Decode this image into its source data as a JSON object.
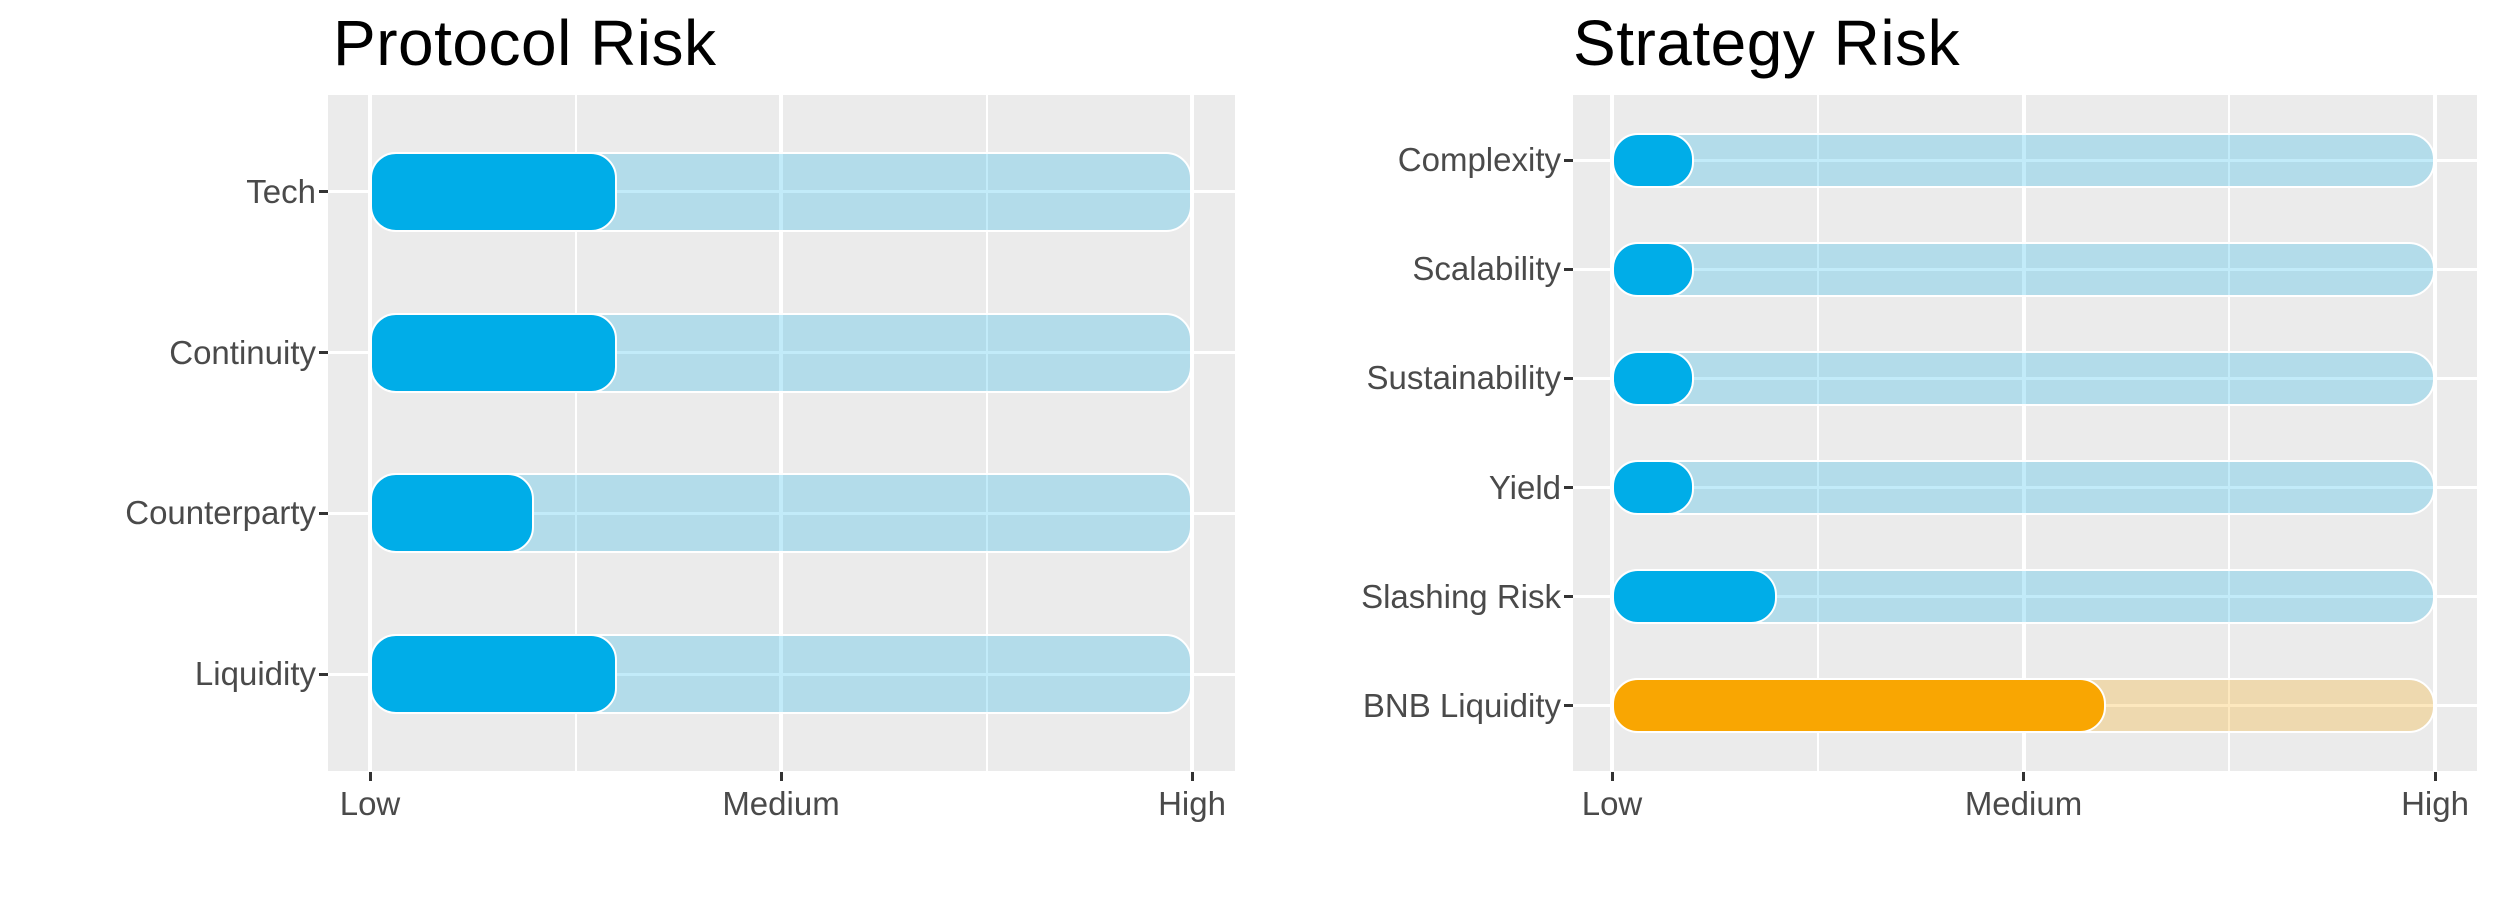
{
  "figure": {
    "background": "#ffffff",
    "panel_background": "#EBEBEB",
    "gridline_color": "#FFFFFF",
    "tick_color": "#333333",
    "label_color": "#4A4A4A",
    "title_color": "#000000"
  },
  "chart_data": [
    {
      "type": "bar",
      "orientation": "horizontal",
      "title": "Protocol Risk",
      "categories": [
        "Tech",
        "Continuity",
        "Counterparty",
        "Liquidity"
      ],
      "values": [
        1.6,
        1.6,
        1.4,
        1.6
      ],
      "value_scale": {
        "min": 1,
        "max": 3,
        "tick_labels": [
          "Low",
          "Medium",
          "High"
        ]
      },
      "bar_colors": [
        "#00ADE8",
        "#00ADE8",
        "#00ADE8",
        "#00ADE8"
      ],
      "track_colors": [
        "rgba(0,173,232,0.24)",
        "rgba(0,173,232,0.24)",
        "rgba(0,173,232,0.24)",
        "rgba(0,173,232,0.24)"
      ],
      "panel_background": "#EBEBEB",
      "gridline_color": "#FFFFFF",
      "label_color": "#4A4A4A",
      "grid": "on",
      "legend": "none"
    },
    {
      "type": "bar",
      "orientation": "horizontal",
      "title": "Strategy Risk",
      "categories": [
        "Complexity",
        "Scalability",
        "Sustainability",
        "Yield",
        "Slashing Risk",
        "BNB Liquidity"
      ],
      "values": [
        1.2,
        1.2,
        1.2,
        1.2,
        1.4,
        2.2
      ],
      "value_scale": {
        "min": 1,
        "max": 3,
        "tick_labels": [
          "Low",
          "Medium",
          "High"
        ]
      },
      "bar_colors": [
        "#00ADE8",
        "#00ADE8",
        "#00ADE8",
        "#00ADE8",
        "#00ADE8",
        "#F9A602"
      ],
      "track_colors": [
        "rgba(0,173,232,0.24)",
        "rgba(0,173,232,0.24)",
        "rgba(0,173,232,0.24)",
        "rgba(0,173,232,0.24)",
        "rgba(0,173,232,0.24)",
        "rgba(249,166,2,0.26)"
      ],
      "panel_background": "#EBEBEB",
      "gridline_color": "#FFFFFF",
      "label_color": "#4A4A4A",
      "grid": "on",
      "legend": "none"
    }
  ]
}
